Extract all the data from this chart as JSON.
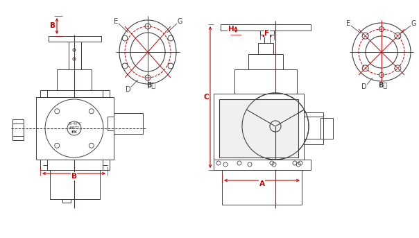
{
  "bg_color": "#ffffff",
  "line_color": "#404040",
  "dim_color": "#cc0000",
  "fig_width": 6.04,
  "fig_height": 3.43,
  "dpi": 100,
  "labels": {
    "A": "A",
    "B_top": "B",
    "B_bot": "B",
    "C": "C",
    "D": "D",
    "E": "E",
    "G": "G",
    "F": "F",
    "H": "H",
    "B_view1": "B向",
    "B_view2": "B向"
  }
}
